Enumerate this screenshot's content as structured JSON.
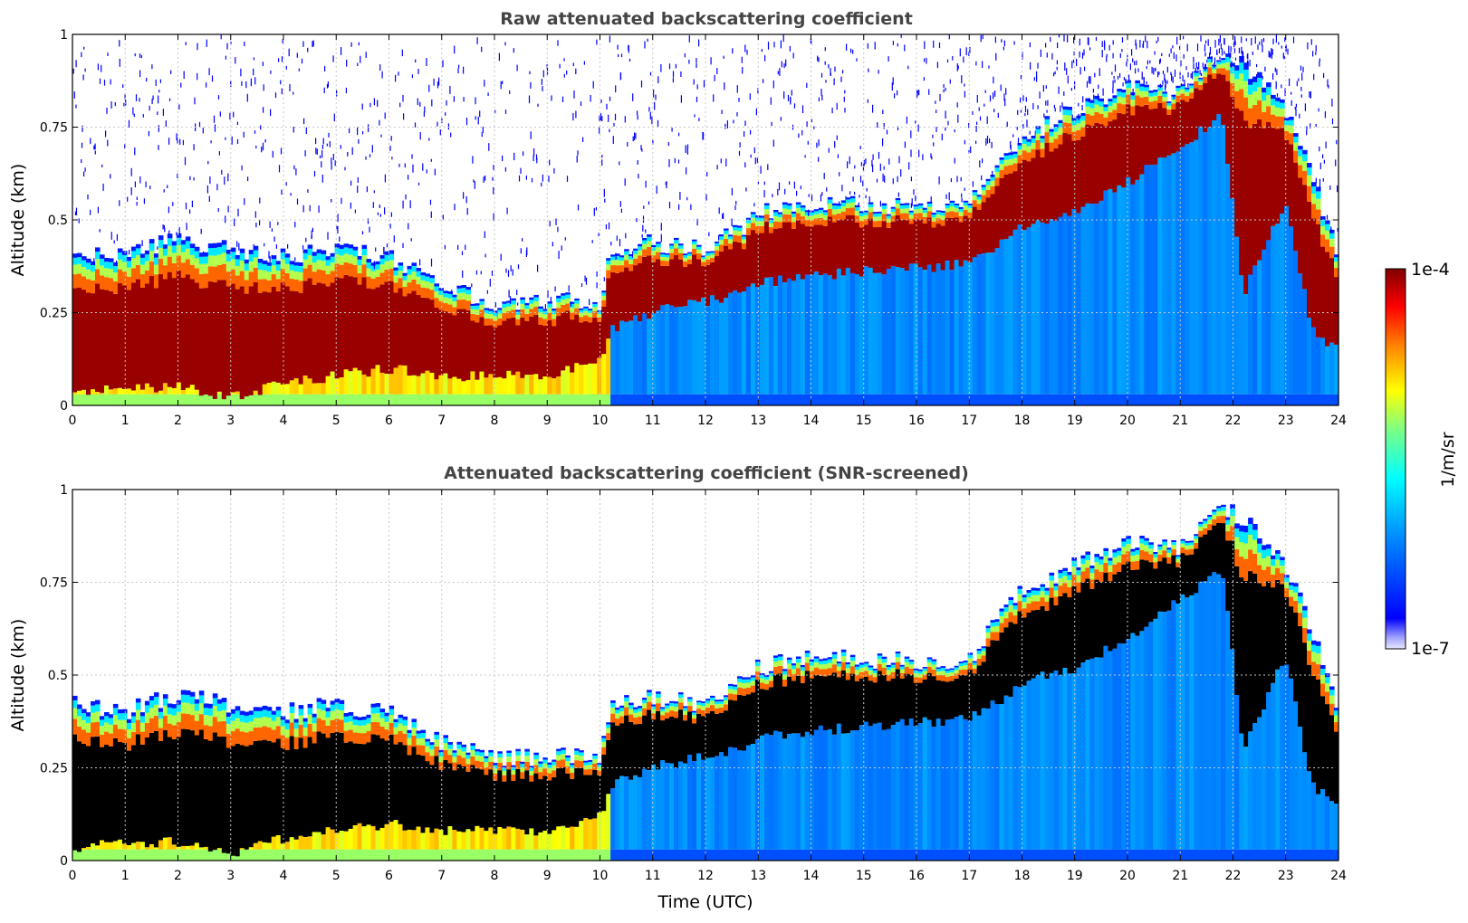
{
  "chart_data": [
    {
      "type": "heatmap",
      "title": "Raw attenuated backscattering coefficient",
      "ylabel": "Altitude (km)",
      "xlabel": "",
      "xlim": [
        0,
        24
      ],
      "ylim": [
        0,
        1
      ],
      "xticks": [
        "0",
        "1",
        "2",
        "3",
        "4",
        "5",
        "6",
        "7",
        "8",
        "9",
        "10",
        "11",
        "12",
        "13",
        "14",
        "15",
        "16",
        "17",
        "18",
        "19",
        "20",
        "21",
        "22",
        "23",
        "24"
      ],
      "yticks": [
        "0",
        "0.25",
        "0.5",
        "0.75",
        "1"
      ],
      "grid": true,
      "screened": false,
      "profile": {
        "x": [
          0,
          1,
          2,
          3,
          4,
          5,
          6,
          7,
          8,
          9,
          10,
          10.2,
          11,
          12,
          12.7,
          13,
          14,
          15,
          16,
          17,
          17.8,
          18,
          19,
          20,
          21,
          21.8,
          22.2,
          23,
          23.5,
          24
        ],
        "layer_base_km": [
          0.03,
          0.05,
          0.05,
          0.02,
          0.06,
          0.08,
          0.1,
          0.08,
          0.08,
          0.08,
          0.12,
          0.2,
          0.25,
          0.28,
          0.3,
          0.33,
          0.35,
          0.36,
          0.37,
          0.38,
          0.45,
          0.48,
          0.52,
          0.6,
          0.7,
          0.78,
          0.3,
          0.55,
          0.2,
          0.15
        ],
        "layer_top_km": [
          0.42,
          0.4,
          0.45,
          0.42,
          0.4,
          0.42,
          0.4,
          0.32,
          0.28,
          0.28,
          0.28,
          0.42,
          0.44,
          0.42,
          0.48,
          0.52,
          0.55,
          0.54,
          0.54,
          0.54,
          0.7,
          0.72,
          0.8,
          0.86,
          0.84,
          0.95,
          0.92,
          0.8,
          0.62,
          0.4
        ]
      }
    },
    {
      "type": "heatmap",
      "title": "Attenuated backscattering coefficient (SNR-screened)",
      "ylabel": "Altitude (km)",
      "xlabel": "Time (UTC)",
      "xlim": [
        0,
        24
      ],
      "ylim": [
        0,
        1
      ],
      "xticks": [
        "0",
        "1",
        "2",
        "3",
        "4",
        "5",
        "6",
        "7",
        "8",
        "9",
        "10",
        "11",
        "12",
        "13",
        "14",
        "15",
        "16",
        "17",
        "18",
        "19",
        "20",
        "21",
        "22",
        "23",
        "24"
      ],
      "yticks": [
        "0",
        "0.25",
        "0.5",
        "0.75",
        "1"
      ],
      "grid": true,
      "screened": true
    }
  ],
  "colorbar": {
    "max_label": "1e-4",
    "min_label": "1e-7",
    "unit_label": "1/m/sr",
    "colormap": "jet",
    "scale": "log"
  }
}
